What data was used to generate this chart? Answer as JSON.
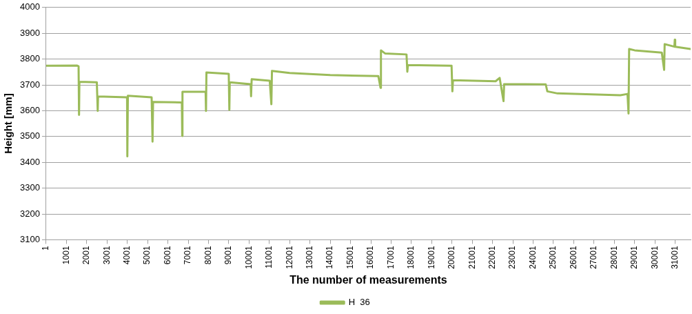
{
  "chart_data": {
    "type": "line",
    "xlabel": "The number of measurements",
    "ylabel": "Height [mm]",
    "xlim": [
      1,
      31760
    ],
    "xticks": [
      1,
      1001,
      2001,
      3001,
      4001,
      5001,
      6001,
      7001,
      8001,
      9001,
      10001,
      11001,
      12001,
      13001,
      14001,
      15001,
      16001,
      17001,
      18001,
      19001,
      20001,
      21001,
      22001,
      23001,
      24001,
      25001,
      26001,
      27001,
      28001,
      29001,
      30001,
      31001
    ],
    "ylim": [
      3100,
      4000
    ],
    "yticks": [
      3100,
      3200,
      3300,
      3400,
      3500,
      3600,
      3700,
      3800,
      3900,
      4000
    ],
    "grid": "y",
    "legend": "bottom",
    "marker": "none",
    "line_style": "solid",
    "x": [
      1,
      1531,
      1600,
      1623,
      1640,
      2500,
      2543,
      2560,
      3990,
      4003,
      4030,
      5200,
      5245,
      5270,
      6690,
      6708,
      6720,
      7860,
      7880,
      7900,
      9000,
      9030,
      9050,
      10080,
      10100,
      10130,
      11020,
      11100,
      11130,
      12000,
      14000,
      16370,
      16480,
      16500,
      16700,
      17760,
      17800,
      17830,
      19980,
      20020,
      20050,
      22150,
      22350,
      22540,
      22570,
      24620,
      24700,
      25200,
      28300,
      28650,
      28700,
      28730,
      29000,
      30340,
      30455,
      30480,
      30960,
      30980,
      31000,
      31760
    ],
    "series": [
      {
        "name": "H  36",
        "color": "#9bbb59",
        "values": [
          3774,
          3775,
          3772,
          3584,
          3712,
          3710,
          3599,
          3655,
          3652,
          3423,
          3658,
          3652,
          3480,
          3634,
          3632,
          3502,
          3673,
          3674,
          3599,
          3748,
          3743,
          3603,
          3710,
          3703,
          3656,
          3722,
          3716,
          3625,
          3754,
          3746,
          3738,
          3734,
          3689,
          3834,
          3822,
          3818,
          3751,
          3777,
          3774,
          3675,
          3718,
          3714,
          3727,
          3637,
          3703,
          3702,
          3675,
          3667,
          3660,
          3665,
          3589,
          3839,
          3834,
          3825,
          3758,
          3858,
          3848,
          3875,
          3848,
          3839
        ]
      }
    ]
  }
}
